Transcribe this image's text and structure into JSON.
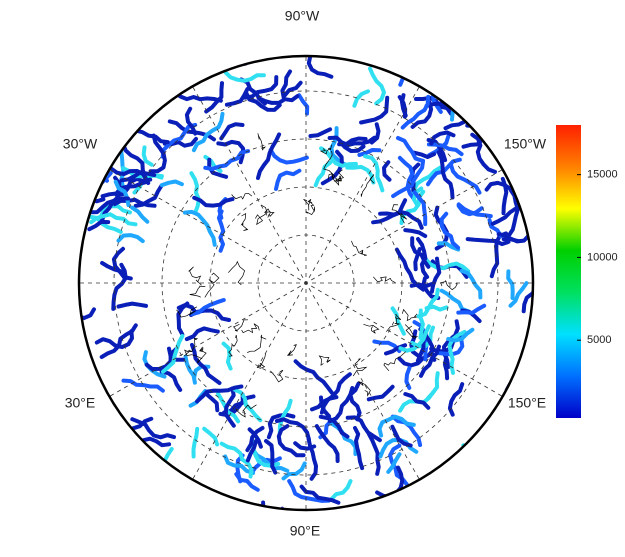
{
  "map": {
    "projection": "polar",
    "meridian_labels": [
      "90°W",
      "30°W",
      "150°W",
      "30°E",
      "150°E",
      "90°E"
    ],
    "colorbar": {
      "lim": [
        300,
        18000
      ],
      "ticks": [
        5000,
        10000,
        15000
      ],
      "colors": [
        "#0000c8",
        "#0070ff",
        "#00e0ff",
        "#00e060",
        "#00d000",
        "#ffff00",
        "#ff8000",
        "#ff2000"
      ]
    }
  }
}
